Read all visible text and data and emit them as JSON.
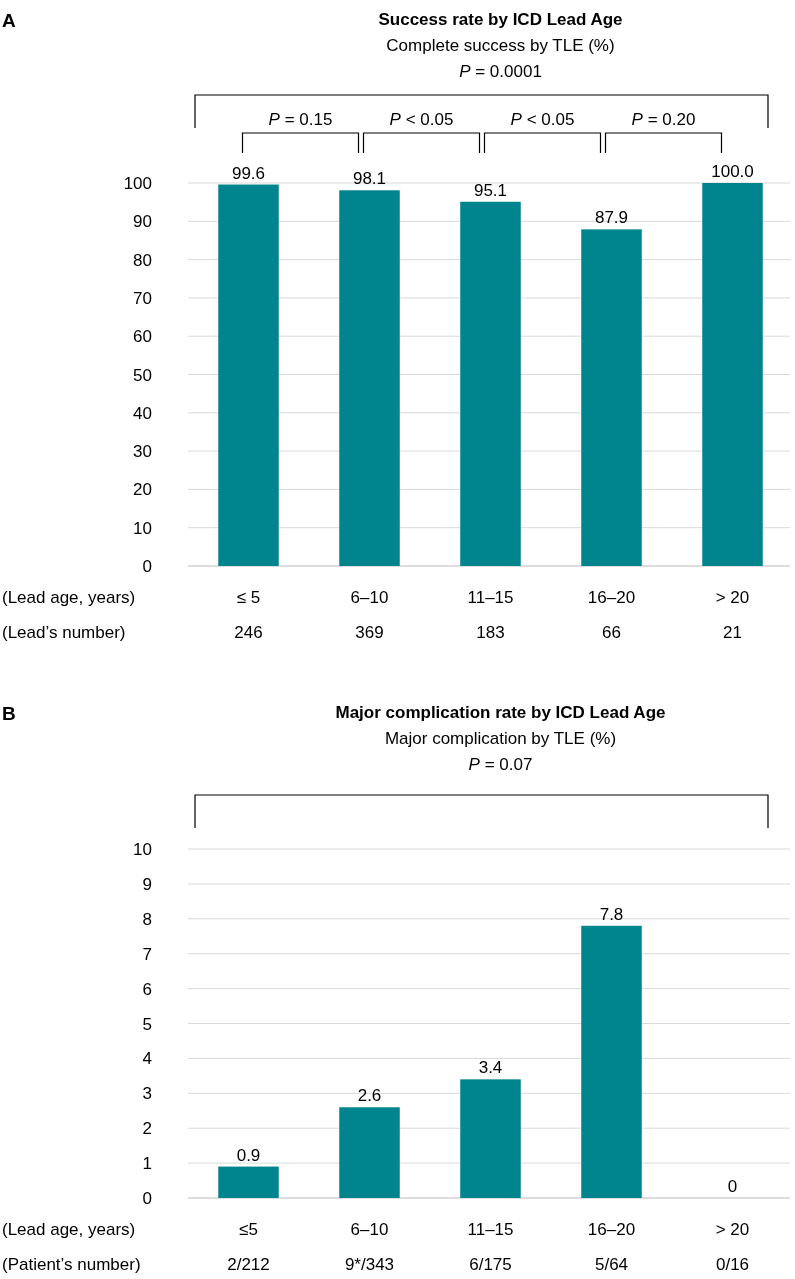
{
  "chart_data": [
    {
      "type": "bar",
      "title": "Success rate by ICD Lead Age",
      "subtitle": "Complete success by TLE (%)",
      "xlabel": "(Lead age, years)",
      "categories": [
        "≤ 5",
        "6–10",
        "11–15",
        "16–20",
        "> 20"
      ],
      "values": [
        99.6,
        98.1,
        95.1,
        87.9,
        100.0
      ],
      "value_labels": [
        "99.6",
        "98.1",
        "95.1",
        "87.9",
        "100.0"
      ],
      "color": "#00848e",
      "ylim": [
        0,
        100
      ],
      "yticks": [
        0,
        10,
        20,
        30,
        40,
        50,
        60,
        70,
        80,
        90,
        100
      ],
      "grid": "y",
      "annotations": [
        "A",
        "P = 0.0001",
        "P = 0.15",
        "P < 0.05",
        "P < 0.05",
        "P = 0.20",
        "(Lead’s number)",
        "246",
        "369",
        "183",
        "66",
        "21"
      ]
    },
    {
      "type": "bar",
      "title": "Major complication rate by ICD Lead Age",
      "subtitle": "Major complication by TLE (%)",
      "xlabel": "(Lead age, years)",
      "categories": [
        "≤5",
        "6–10",
        "11–15",
        "16–20",
        "> 20"
      ],
      "values": [
        0.9,
        2.6,
        3.4,
        7.8,
        0
      ],
      "data_labels": true,
      "color": "#00848e",
      "ylim": [
        0,
        10
      ],
      "yticks": [
        0,
        1,
        2,
        3,
        4,
        5,
        6,
        7,
        8,
        9,
        10
      ],
      "grid": "y",
      "annotations": [
        "B",
        "P = 0.07",
        "(Patient’s number)",
        "2/212",
        "9*/343",
        "6/175",
        "5/64",
        "0/16"
      ]
    }
  ]
}
